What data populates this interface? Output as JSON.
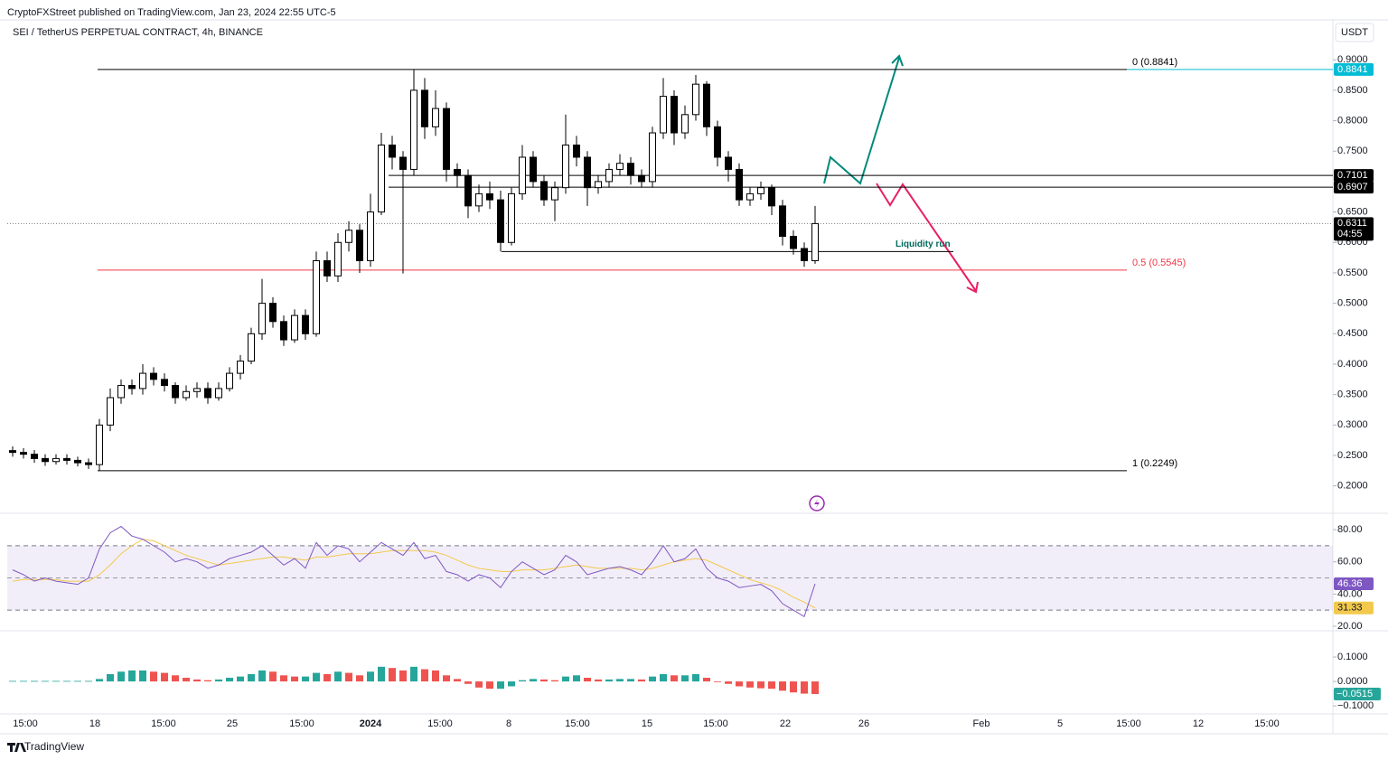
{
  "header": {
    "publisher": "CryptoFXStreet published on TradingView.com, Jan 23, 2024 22:55 UTC-5",
    "symbol": "SEI / TetherUS PERPETUAL CONTRACT, 4h, BINANCE",
    "currency": "USDT"
  },
  "footer": {
    "brand": "TradingView"
  },
  "chart_data": [
    {
      "type": "candlestick",
      "open": [
        0.258,
        0.255,
        0.252,
        0.245,
        0.24,
        0.245,
        0.242,
        0.238,
        0.235,
        0.3,
        0.345,
        0.365,
        0.36,
        0.385,
        0.375,
        0.365,
        0.345,
        0.355,
        0.36,
        0.345,
        0.36,
        0.385,
        0.405,
        0.45,
        0.5,
        0.47,
        0.44,
        0.48,
        0.45,
        0.57,
        0.545,
        0.6,
        0.62,
        0.57,
        0.65,
        0.76,
        0.74,
        0.72,
        0.85,
        0.79,
        0.82,
        0.72,
        0.71,
        0.66,
        0.68,
        0.67,
        0.6,
        0.68,
        0.74,
        0.7,
        0.67,
        0.69,
        0.76,
        0.74,
        0.69,
        0.7,
        0.72,
        0.73,
        0.71,
        0.7,
        0.78,
        0.84,
        0.78,
        0.81,
        0.86,
        0.79,
        0.74,
        0.72,
        0.67,
        0.68,
        0.69,
        0.66,
        0.61,
        0.59,
        0.57
      ],
      "high": [
        0.265,
        0.262,
        0.259,
        0.252,
        0.252,
        0.252,
        0.248,
        0.245,
        0.31,
        0.36,
        0.375,
        0.375,
        0.4,
        0.395,
        0.385,
        0.37,
        0.365,
        0.37,
        0.37,
        0.37,
        0.395,
        0.415,
        0.46,
        0.54,
        0.51,
        0.48,
        0.49,
        0.49,
        0.585,
        0.585,
        0.615,
        0.635,
        0.63,
        0.68,
        0.78,
        0.775,
        0.75,
        0.884,
        0.87,
        0.85,
        0.83,
        0.73,
        0.72,
        0.695,
        0.7,
        0.685,
        0.69,
        0.76,
        0.75,
        0.71,
        0.7,
        0.81,
        0.775,
        0.75,
        0.71,
        0.73,
        0.745,
        0.74,
        0.72,
        0.79,
        0.87,
        0.85,
        0.825,
        0.875,
        0.865,
        0.8,
        0.75,
        0.73,
        0.69,
        0.7,
        0.695,
        0.67,
        0.62,
        0.6,
        0.66
      ],
      "low": [
        0.248,
        0.245,
        0.238,
        0.233,
        0.235,
        0.235,
        0.232,
        0.228,
        0.225,
        0.29,
        0.335,
        0.35,
        0.35,
        0.365,
        0.355,
        0.335,
        0.34,
        0.345,
        0.335,
        0.34,
        0.355,
        0.375,
        0.4,
        0.44,
        0.46,
        0.43,
        0.435,
        0.44,
        0.445,
        0.535,
        0.535,
        0.585,
        0.55,
        0.56,
        0.645,
        0.72,
        0.549,
        0.71,
        0.77,
        0.775,
        0.7,
        0.69,
        0.64,
        0.65,
        0.655,
        0.585,
        0.595,
        0.67,
        0.69,
        0.66,
        0.635,
        0.68,
        0.725,
        0.66,
        0.68,
        0.69,
        0.71,
        0.695,
        0.69,
        0.69,
        0.77,
        0.76,
        0.77,
        0.8,
        0.775,
        0.725,
        0.7,
        0.66,
        0.66,
        0.67,
        0.645,
        0.595,
        0.58,
        0.56,
        0.565
      ],
      "close": [
        0.255,
        0.252,
        0.245,
        0.24,
        0.245,
        0.242,
        0.238,
        0.235,
        0.3,
        0.345,
        0.365,
        0.36,
        0.385,
        0.375,
        0.365,
        0.345,
        0.355,
        0.36,
        0.345,
        0.36,
        0.385,
        0.405,
        0.45,
        0.5,
        0.47,
        0.44,
        0.48,
        0.45,
        0.57,
        0.545,
        0.6,
        0.62,
        0.57,
        0.65,
        0.76,
        0.74,
        0.72,
        0.85,
        0.79,
        0.82,
        0.72,
        0.71,
        0.66,
        0.68,
        0.67,
        0.6,
        0.68,
        0.74,
        0.7,
        0.67,
        0.69,
        0.76,
        0.74,
        0.69,
        0.7,
        0.72,
        0.73,
        0.71,
        0.7,
        0.78,
        0.84,
        0.78,
        0.81,
        0.86,
        0.79,
        0.74,
        0.72,
        0.67,
        0.68,
        0.69,
        0.66,
        0.61,
        0.59,
        0.57,
        0.631
      ],
      "up_color": "#ffffff",
      "down_color": "#000000",
      "ylim": [
        0.155,
        0.93
      ],
      "yticks": [
        {
          "value": 0.2,
          "label": "0.2000"
        },
        {
          "value": 0.25,
          "label": "0.2500"
        },
        {
          "value": 0.3,
          "label": "0.3000"
        },
        {
          "value": 0.35,
          "label": "0.3500"
        },
        {
          "value": 0.4,
          "label": "0.4000"
        },
        {
          "value": 0.45,
          "label": "0.4500"
        },
        {
          "value": 0.5,
          "label": "0.5000"
        },
        {
          "value": 0.55,
          "label": "0.5500"
        },
        {
          "value": 0.6,
          "label": "0.6000"
        },
        {
          "value": 0.65,
          "label": "0.6500"
        },
        {
          "value": 0.75,
          "label": "0.7500"
        },
        {
          "value": 0.8,
          "label": "0.8000"
        },
        {
          "value": 0.85,
          "label": "0.8500"
        },
        {
          "value": 0.9,
          "label": "0.9000"
        }
      ],
      "x_labels": [
        "15:00",
        "18",
        "15:00",
        "25",
        "15:00",
        "2024",
        "15:00",
        "8",
        "15:00",
        "15",
        "15:00",
        "22",
        "26",
        "Feb",
        "5",
        "15:00",
        "12",
        "15:00"
      ],
      "price_labels": [
        {
          "value": 0.8841,
          "label": "0.8841",
          "color": "#00bcd4"
        },
        {
          "value": 0.7101,
          "label": "0.7101",
          "color": "#000000"
        },
        {
          "value": 0.6907,
          "label": "0.6907",
          "color": "#000000"
        }
      ],
      "current_price": {
        "value": 0.6311,
        "label": "0.6311",
        "countdown": "04:55"
      },
      "fib_levels": [
        {
          "value": 0.8841,
          "label": "0 (0.8841)",
          "color": "#000000"
        },
        {
          "value": 0.5545,
          "label": "0.5 (0.5545)",
          "color": "#f23645"
        },
        {
          "value": 0.2249,
          "label": "1 (0.2249)",
          "color": "#000000"
        }
      ],
      "annotations": [
        {
          "text": "Liquidity run",
          "value": 0.585,
          "color": "#00695c"
        }
      ]
    },
    {
      "type": "line",
      "series": [
        {
          "color": "#7e57c2",
          "values": [
            55,
            52,
            48,
            50,
            48,
            47,
            46,
            50,
            68,
            78,
            82,
            76,
            74,
            70,
            66,
            60,
            62,
            60,
            56,
            58,
            62,
            64,
            66,
            70,
            64,
            58,
            62,
            56,
            72,
            64,
            70,
            68,
            60,
            66,
            72,
            68,
            64,
            72,
            62,
            64,
            54,
            52,
            48,
            52,
            50,
            44,
            54,
            60,
            56,
            52,
            55,
            64,
            60,
            52,
            54,
            56,
            57,
            55,
            52,
            60,
            70,
            60,
            62,
            68,
            56,
            50,
            48,
            44,
            45,
            46,
            42,
            34,
            30,
            26,
            46.36
          ]
        },
        {
          "color": "#f2c94c",
          "values": [
            48,
            49,
            49,
            49,
            49,
            48,
            48,
            48,
            52,
            58,
            65,
            70,
            74,
            73,
            70,
            67,
            64,
            62,
            60,
            58,
            59,
            60,
            61,
            62,
            63,
            63,
            62,
            61,
            63,
            63,
            64,
            65,
            65,
            65,
            66,
            67,
            67,
            67,
            67,
            66,
            64,
            61,
            58,
            56,
            55,
            54,
            54,
            55,
            55,
            55,
            56,
            57,
            58,
            57,
            56,
            56,
            56,
            56,
            55,
            56,
            58,
            60,
            61,
            62,
            61,
            58,
            55,
            52,
            49,
            47,
            45,
            42,
            38,
            35,
            31.33
          ]
        }
      ],
      "band": [
        30,
        70
      ],
      "midline": 50,
      "band_color": "#7e57c2",
      "ylim": [
        17.2,
        89
      ],
      "yticks": [
        {
          "value": 20,
          "label": "20.00"
        },
        {
          "value": 40,
          "label": "40.00"
        },
        {
          "value": 60,
          "label": "60.00"
        },
        {
          "value": 80,
          "label": "80.00"
        }
      ]
    },
    {
      "type": "bar",
      "values": [
        0.002,
        0.002,
        0.002,
        0.002,
        0.002,
        0.002,
        0.002,
        0.002,
        0.01,
        0.03,
        0.04,
        0.045,
        0.045,
        0.04,
        0.035,
        0.025,
        0.015,
        0.008,
        0.005,
        0.008,
        0.015,
        0.02,
        0.03,
        0.045,
        0.04,
        0.025,
        0.02,
        0.02,
        0.035,
        0.03,
        0.04,
        0.035,
        0.025,
        0.04,
        0.06,
        0.055,
        0.045,
        0.06,
        0.05,
        0.045,
        0.025,
        0.01,
        -0.01,
        -0.025,
        -0.03,
        -0.03,
        -0.02,
        0.005,
        0.01,
        0.008,
        0.005,
        0.02,
        0.025,
        0.015,
        0.008,
        0.008,
        0.01,
        0.01,
        0.008,
        0.02,
        0.03,
        0.025,
        0.025,
        0.03,
        0.015,
        0.0,
        -0.01,
        -0.02,
        -0.025,
        -0.028,
        -0.03,
        -0.038,
        -0.045,
        -0.05,
        -0.0515
      ],
      "last_value_label": "−0.0515",
      "rising_color": "#26a69a",
      "falling_color": "#ef5350",
      "ylim": [
        -0.133,
        0.2
      ],
      "yticks": [
        {
          "value": -0.1,
          "label": "−0.1000"
        },
        {
          "value": 0,
          "label": "0.0000"
        },
        {
          "value": 0.1,
          "label": "0.1000"
        }
      ]
    }
  ]
}
